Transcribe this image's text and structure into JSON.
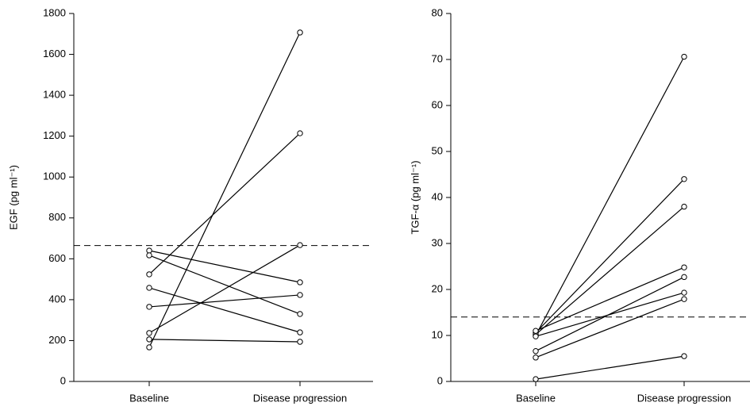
{
  "chart_data": [
    {
      "type": "line",
      "ylabel": "EGF (pg ml⁻¹)",
      "categories": [
        "Baseline",
        "Disease progression"
      ],
      "ylim": [
        0,
        1800
      ],
      "yticks": [
        0,
        200,
        400,
        600,
        800,
        1000,
        1200,
        1400,
        1600,
        1800
      ],
      "reference_line": 665,
      "color": "#000000",
      "series": [
        {
          "values": [
            167,
            1707
          ]
        },
        {
          "values": [
            524,
            1214
          ]
        },
        {
          "values": [
            237,
            667
          ]
        },
        {
          "values": [
            640,
            485
          ]
        },
        {
          "values": [
            617,
            330
          ]
        },
        {
          "values": [
            458,
            240
          ]
        },
        {
          "values": [
            365,
            423
          ]
        },
        {
          "values": [
            206,
            194
          ]
        }
      ]
    },
    {
      "type": "line",
      "ylabel": "TGF-α (pg ml⁻¹)",
      "categories": [
        "Baseline",
        "Disease progression"
      ],
      "ylim": [
        0,
        80
      ],
      "yticks": [
        0,
        10,
        20,
        30,
        40,
        50,
        60,
        70,
        80
      ],
      "reference_line": 14,
      "color": "#000000",
      "series": [
        {
          "values": [
            10.0,
            70.6
          ]
        },
        {
          "values": [
            10.6,
            44
          ]
        },
        {
          "values": [
            10.2,
            38
          ]
        },
        {
          "values": [
            11.0,
            24.8
          ]
        },
        {
          "values": [
            6.6,
            22.7
          ]
        },
        {
          "values": [
            9.8,
            19.3
          ]
        },
        {
          "values": [
            5.2,
            17.9
          ]
        },
        {
          "values": [
            0.5,
            5.5
          ]
        }
      ]
    }
  ]
}
